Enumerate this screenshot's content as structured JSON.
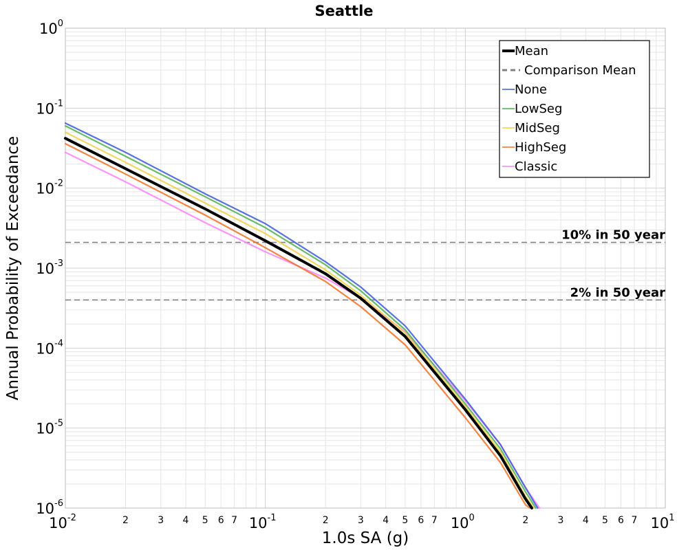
{
  "chart_data": {
    "type": "line",
    "title": "Seattle",
    "xlabel": "1.0s SA (g)",
    "ylabel": "Annual Probability of Exceedance",
    "xscale": "log",
    "yscale": "log",
    "xlim": [
      0.01,
      10
    ],
    "ylim": [
      1e-06,
      1
    ],
    "grid": true,
    "legend_position": "top-right",
    "x_major_ticks": [
      {
        "base": "10",
        "exp": "-2"
      },
      {
        "base": "10",
        "exp": "-1"
      },
      {
        "base": "10",
        "exp": "0"
      },
      {
        "base": "10",
        "exp": "1"
      }
    ],
    "y_major_ticks": [
      {
        "base": "10",
        "exp": "0"
      },
      {
        "base": "10",
        "exp": "-1"
      },
      {
        "base": "10",
        "exp": "-2"
      },
      {
        "base": "10",
        "exp": "-3"
      },
      {
        "base": "10",
        "exp": "-4"
      },
      {
        "base": "10",
        "exp": "-5"
      },
      {
        "base": "10",
        "exp": "-6"
      }
    ],
    "x_minor_tick_labels": [
      "2",
      "3",
      "4",
      "5",
      "6",
      "7"
    ],
    "reference_lines": [
      {
        "label": "10% in 50 year",
        "y": 0.0021,
        "color": "#808080"
      },
      {
        "label": "2% in 50 year",
        "y": 0.0004,
        "color": "#808080"
      }
    ],
    "legend": [
      {
        "name": "Mean",
        "color": "#000000",
        "style": "solid-thick"
      },
      {
        "name": "Comparison Mean",
        "color": "#808080",
        "style": "dashed"
      },
      {
        "name": "None",
        "color": "#3b5bdb",
        "style": "solid"
      },
      {
        "name": "LowSeg",
        "color": "#4caf50",
        "style": "solid"
      },
      {
        "name": "MidSeg",
        "color": "#f0d040",
        "style": "solid"
      },
      {
        "name": "HighSeg",
        "color": "#f07020",
        "style": "solid"
      },
      {
        "name": "Classic",
        "color": "#ff80ff",
        "style": "solid"
      }
    ],
    "series": [
      {
        "name": "Mean",
        "x": [
          0.01,
          0.02,
          0.05,
          0.1,
          0.2,
          0.3,
          0.5,
          1.0,
          1.5,
          2.0,
          2.15
        ],
        "y": [
          0.042,
          0.0175,
          0.0055,
          0.0022,
          0.00085,
          0.00042,
          0.00014,
          1.7e-05,
          4.5e-06,
          1.3e-06,
          1e-06
        ]
      },
      {
        "name": "None",
        "x": [
          0.01,
          0.02,
          0.05,
          0.1,
          0.2,
          0.3,
          0.5,
          1.0,
          1.5,
          2.0,
          2.3
        ],
        "y": [
          0.065,
          0.028,
          0.0085,
          0.0036,
          0.0012,
          0.00058,
          0.00019,
          2.3e-05,
          6.2e-06,
          1.8e-06,
          1e-06
        ]
      },
      {
        "name": "LowSeg",
        "x": [
          0.01,
          0.02,
          0.05,
          0.1,
          0.2,
          0.3,
          0.5,
          1.0,
          1.5,
          2.0,
          2.25
        ],
        "y": [
          0.06,
          0.025,
          0.0078,
          0.0032,
          0.0011,
          0.00052,
          0.00017,
          2e-05,
          5.5e-06,
          1.6e-06,
          1e-06
        ]
      },
      {
        "name": "MidSeg",
        "x": [
          0.01,
          0.02,
          0.05,
          0.1,
          0.2,
          0.3,
          0.5,
          1.0,
          1.5,
          2.0,
          2.2
        ],
        "y": [
          0.05,
          0.021,
          0.0065,
          0.0027,
          0.00095,
          0.00046,
          0.000155,
          1.85e-05,
          5e-06,
          1.4e-06,
          1e-06
        ]
      },
      {
        "name": "HighSeg",
        "x": [
          0.01,
          0.02,
          0.05,
          0.1,
          0.2,
          0.3,
          0.5,
          1.0,
          1.5,
          2.0,
          2.1
        ],
        "y": [
          0.036,
          0.015,
          0.0046,
          0.0018,
          0.00068,
          0.00033,
          0.00011,
          1.35e-05,
          3.7e-06,
          1.1e-06,
          1e-06
        ]
      },
      {
        "name": "Classic",
        "x": [
          0.01,
          0.02,
          0.05,
          0.1,
          0.2,
          0.3,
          0.5,
          1.0,
          1.5,
          2.0,
          2.35
        ],
        "y": [
          0.028,
          0.012,
          0.0037,
          0.0016,
          0.00075,
          0.00042,
          0.00016,
          2.2e-05,
          6.2e-06,
          1.8e-06,
          1e-06
        ]
      }
    ]
  }
}
